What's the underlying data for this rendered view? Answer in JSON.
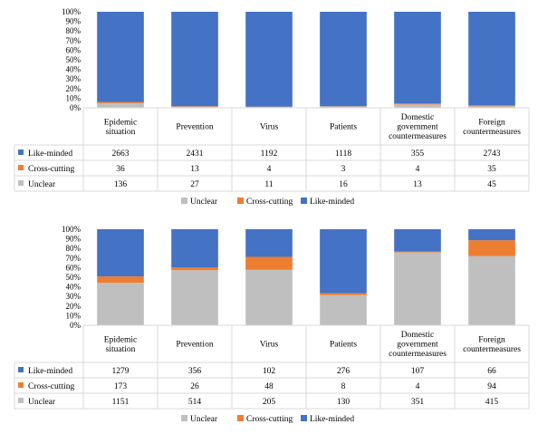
{
  "chart_data": [
    {
      "type": "bar",
      "stacked": "percent",
      "categories": [
        [
          "Epidemic",
          "situation"
        ],
        [
          "Prevention"
        ],
        [
          "Virus"
        ],
        [
          "Patients"
        ],
        [
          "Domestic",
          "government",
          "countermeasures"
        ],
        [
          "Foreign",
          "countermeasures"
        ]
      ],
      "series": [
        {
          "name": "Like-minded",
          "values": [
            2663,
            2431,
            1192,
            1118,
            355,
            2743
          ]
        },
        {
          "name": "Cross-cutting",
          "values": [
            36,
            13,
            4,
            3,
            4,
            35
          ]
        },
        {
          "name": "Unclear",
          "values": [
            136,
            27,
            11,
            16,
            13,
            45
          ]
        }
      ],
      "stack_order": [
        "Unclear",
        "Cross-cutting",
        "Like-minded"
      ],
      "legend_order": [
        "Unclear",
        "Cross-cutting",
        "Like-minded"
      ],
      "yticks": [
        "0%",
        "10%",
        "20%",
        "30%",
        "40%",
        "50%",
        "60%",
        "70%",
        "80%",
        "90%",
        "100%"
      ],
      "ylim": [
        0,
        100
      ],
      "data_table": true,
      "legend_position": "bottom"
    },
    {
      "type": "bar",
      "stacked": "percent",
      "categories": [
        [
          "Epidemic",
          "situation"
        ],
        [
          "Prevention"
        ],
        [
          "Virus"
        ],
        [
          "Patients"
        ],
        [
          "Domestic",
          "government",
          "countermeasures"
        ],
        [
          "Foreign",
          "countermeasures"
        ]
      ],
      "series": [
        {
          "name": "Like-minded",
          "values": [
            1279,
            356,
            102,
            276,
            107,
            66
          ]
        },
        {
          "name": "Cross-cutting",
          "values": [
            173,
            26,
            48,
            8,
            4,
            94
          ]
        },
        {
          "name": "Unclear",
          "values": [
            1151,
            514,
            205,
            130,
            351,
            415
          ]
        }
      ],
      "stack_order": [
        "Unclear",
        "Cross-cutting",
        "Like-minded"
      ],
      "legend_order": [
        "Unclear",
        "Cross-cutting",
        "Like-minded"
      ],
      "yticks": [
        "0%",
        "10%",
        "20%",
        "30%",
        "40%",
        "50%",
        "60%",
        "70%",
        "80%",
        "90%",
        "100%"
      ],
      "ylim": [
        0,
        100
      ],
      "data_table": true,
      "legend_position": "bottom"
    }
  ],
  "colors": {
    "Like-minded": "#4472c4",
    "Cross-cutting": "#ed7d31",
    "Unclear": "#bfbfbf",
    "gridline": "#d9d9d9",
    "table_border": "#d9d9d9"
  }
}
